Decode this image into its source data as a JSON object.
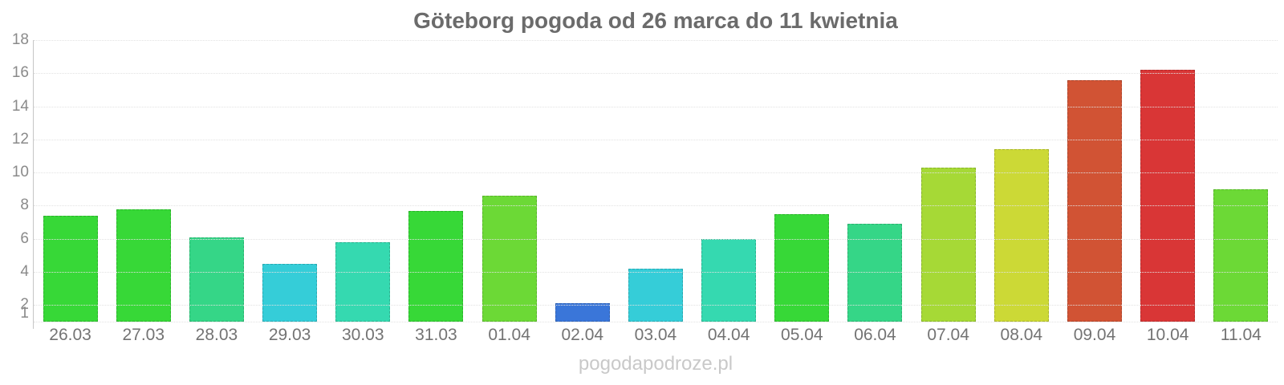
{
  "page": {
    "background": "#ffffff"
  },
  "chart_data": {
    "type": "bar",
    "title": "Göteborg pogoda od 26 marca do 11 kwietnia",
    "categories": [
      "26.03",
      "27.03",
      "28.03",
      "29.03",
      "30.03",
      "31.03",
      "01.04",
      "02.04",
      "03.04",
      "04.04",
      "05.04",
      "06.04",
      "07.04",
      "08.04",
      "09.04",
      "10.04",
      "11.04"
    ],
    "values": [
      7.4,
      7.8,
      6.1,
      4.5,
      5.8,
      7.7,
      8.6,
      2.1,
      4.2,
      6.0,
      7.5,
      6.9,
      10.3,
      11.4,
      15.6,
      16.2,
      9.0
    ],
    "bar_colors": [
      "#37d837",
      "#37d837",
      "#35d687",
      "#35cdd8",
      "#35d9b0",
      "#37d837",
      "#6cd936",
      "#3a76d9",
      "#35cdd8",
      "#35d9b0",
      "#37d837",
      "#35d687",
      "#a6d936",
      "#ccd936",
      "#d15334",
      "#d93636",
      "#6cd936"
    ],
    "xlabel": "",
    "ylabel": "",
    "yticks": [
      18,
      16,
      14,
      12,
      10,
      8,
      6,
      4,
      2,
      1
    ],
    "ylim": [
      1,
      18
    ],
    "grid": "horizontal-dotted",
    "legend_position": "none",
    "watermark": "pogodapodroze.pl",
    "colors": {
      "title": "#6b6b6b",
      "y_axis_labels": "#8a8a8a",
      "x_axis_labels": "#737373",
      "gridline": "#e2e2e2",
      "axis_line": "#c6c6c6",
      "watermark": "#c9c9c9"
    }
  }
}
